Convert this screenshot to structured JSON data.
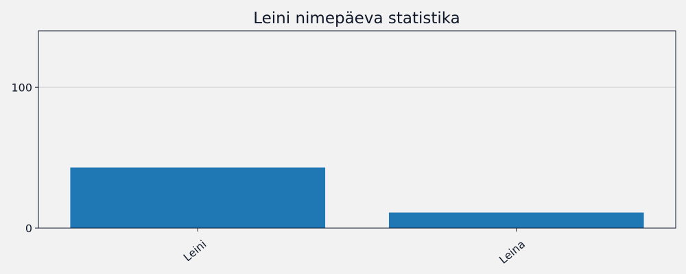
{
  "chart_data": {
    "type": "bar",
    "title": "Leini nimepäeva statistika",
    "categories": [
      "Leini",
      "Leina"
    ],
    "values": [
      43,
      11
    ],
    "xlabel": "",
    "ylabel": "",
    "ylim": [
      0,
      140
    ],
    "yticks": [
      0,
      100
    ],
    "grid": "horizontal",
    "legend": "none",
    "bar_color": "#1f77b4",
    "text_color": "#0f1729",
    "background_color": "#f2f2f2"
  }
}
